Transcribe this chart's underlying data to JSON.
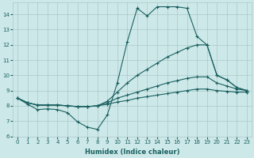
{
  "xlabel": "Humidex (Indice chaleur)",
  "xlim": [
    -0.5,
    23.5
  ],
  "ylim": [
    6,
    14.8
  ],
  "yticks": [
    6,
    7,
    8,
    9,
    10,
    11,
    12,
    13,
    14
  ],
  "xticks": [
    0,
    1,
    2,
    3,
    4,
    5,
    6,
    7,
    8,
    9,
    10,
    11,
    12,
    13,
    14,
    15,
    16,
    17,
    18,
    19,
    20,
    21,
    22,
    23
  ],
  "background_color": "#cde8e8",
  "grid_color": "#aac8c8",
  "line_color": "#1a6060",
  "series": [
    {
      "x": [
        0,
        1,
        2,
        3,
        4,
        5,
        6,
        7,
        8,
        9,
        10,
        11,
        12,
        13,
        14,
        15,
        16,
        17,
        18,
        19,
        20,
        21,
        22,
        23
      ],
      "y": [
        8.5,
        8.1,
        7.75,
        7.8,
        7.75,
        7.55,
        6.95,
        6.6,
        6.45,
        7.4,
        9.5,
        12.2,
        14.4,
        13.9,
        14.5,
        14.5,
        14.5,
        14.4,
        12.55,
        12.0,
        10.0,
        9.7,
        9.2,
        9.0
      ]
    },
    {
      "x": [
        0,
        1,
        2,
        3,
        4,
        5,
        6,
        7,
        8,
        9,
        10,
        11,
        12,
        13,
        14,
        15,
        16,
        17,
        18,
        19,
        20,
        21,
        22,
        23
      ],
      "y": [
        8.5,
        8.2,
        8.05,
        8.05,
        8.05,
        8.0,
        7.95,
        7.95,
        8.0,
        8.3,
        8.9,
        9.5,
        10.0,
        10.4,
        10.8,
        11.2,
        11.5,
        11.8,
        12.0,
        12.0,
        10.0,
        9.7,
        9.2,
        9.0
      ]
    },
    {
      "x": [
        0,
        1,
        2,
        3,
        4,
        5,
        6,
        7,
        8,
        9,
        10,
        11,
        12,
        13,
        14,
        15,
        16,
        17,
        18,
        19,
        20,
        21,
        22,
        23
      ],
      "y": [
        8.5,
        8.2,
        8.05,
        8.05,
        8.05,
        8.0,
        7.95,
        7.95,
        8.0,
        8.2,
        8.5,
        8.7,
        8.9,
        9.1,
        9.3,
        9.5,
        9.65,
        9.8,
        9.9,
        9.9,
        9.5,
        9.3,
        9.1,
        9.0
      ]
    },
    {
      "x": [
        0,
        1,
        2,
        3,
        4,
        5,
        6,
        7,
        8,
        9,
        10,
        11,
        12,
        13,
        14,
        15,
        16,
        17,
        18,
        19,
        20,
        21,
        22,
        23
      ],
      "y": [
        8.5,
        8.2,
        8.05,
        8.05,
        8.05,
        8.0,
        7.95,
        7.95,
        8.0,
        8.1,
        8.25,
        8.35,
        8.5,
        8.6,
        8.7,
        8.8,
        8.9,
        9.0,
        9.1,
        9.1,
        9.0,
        8.95,
        8.9,
        8.9
      ]
    }
  ]
}
